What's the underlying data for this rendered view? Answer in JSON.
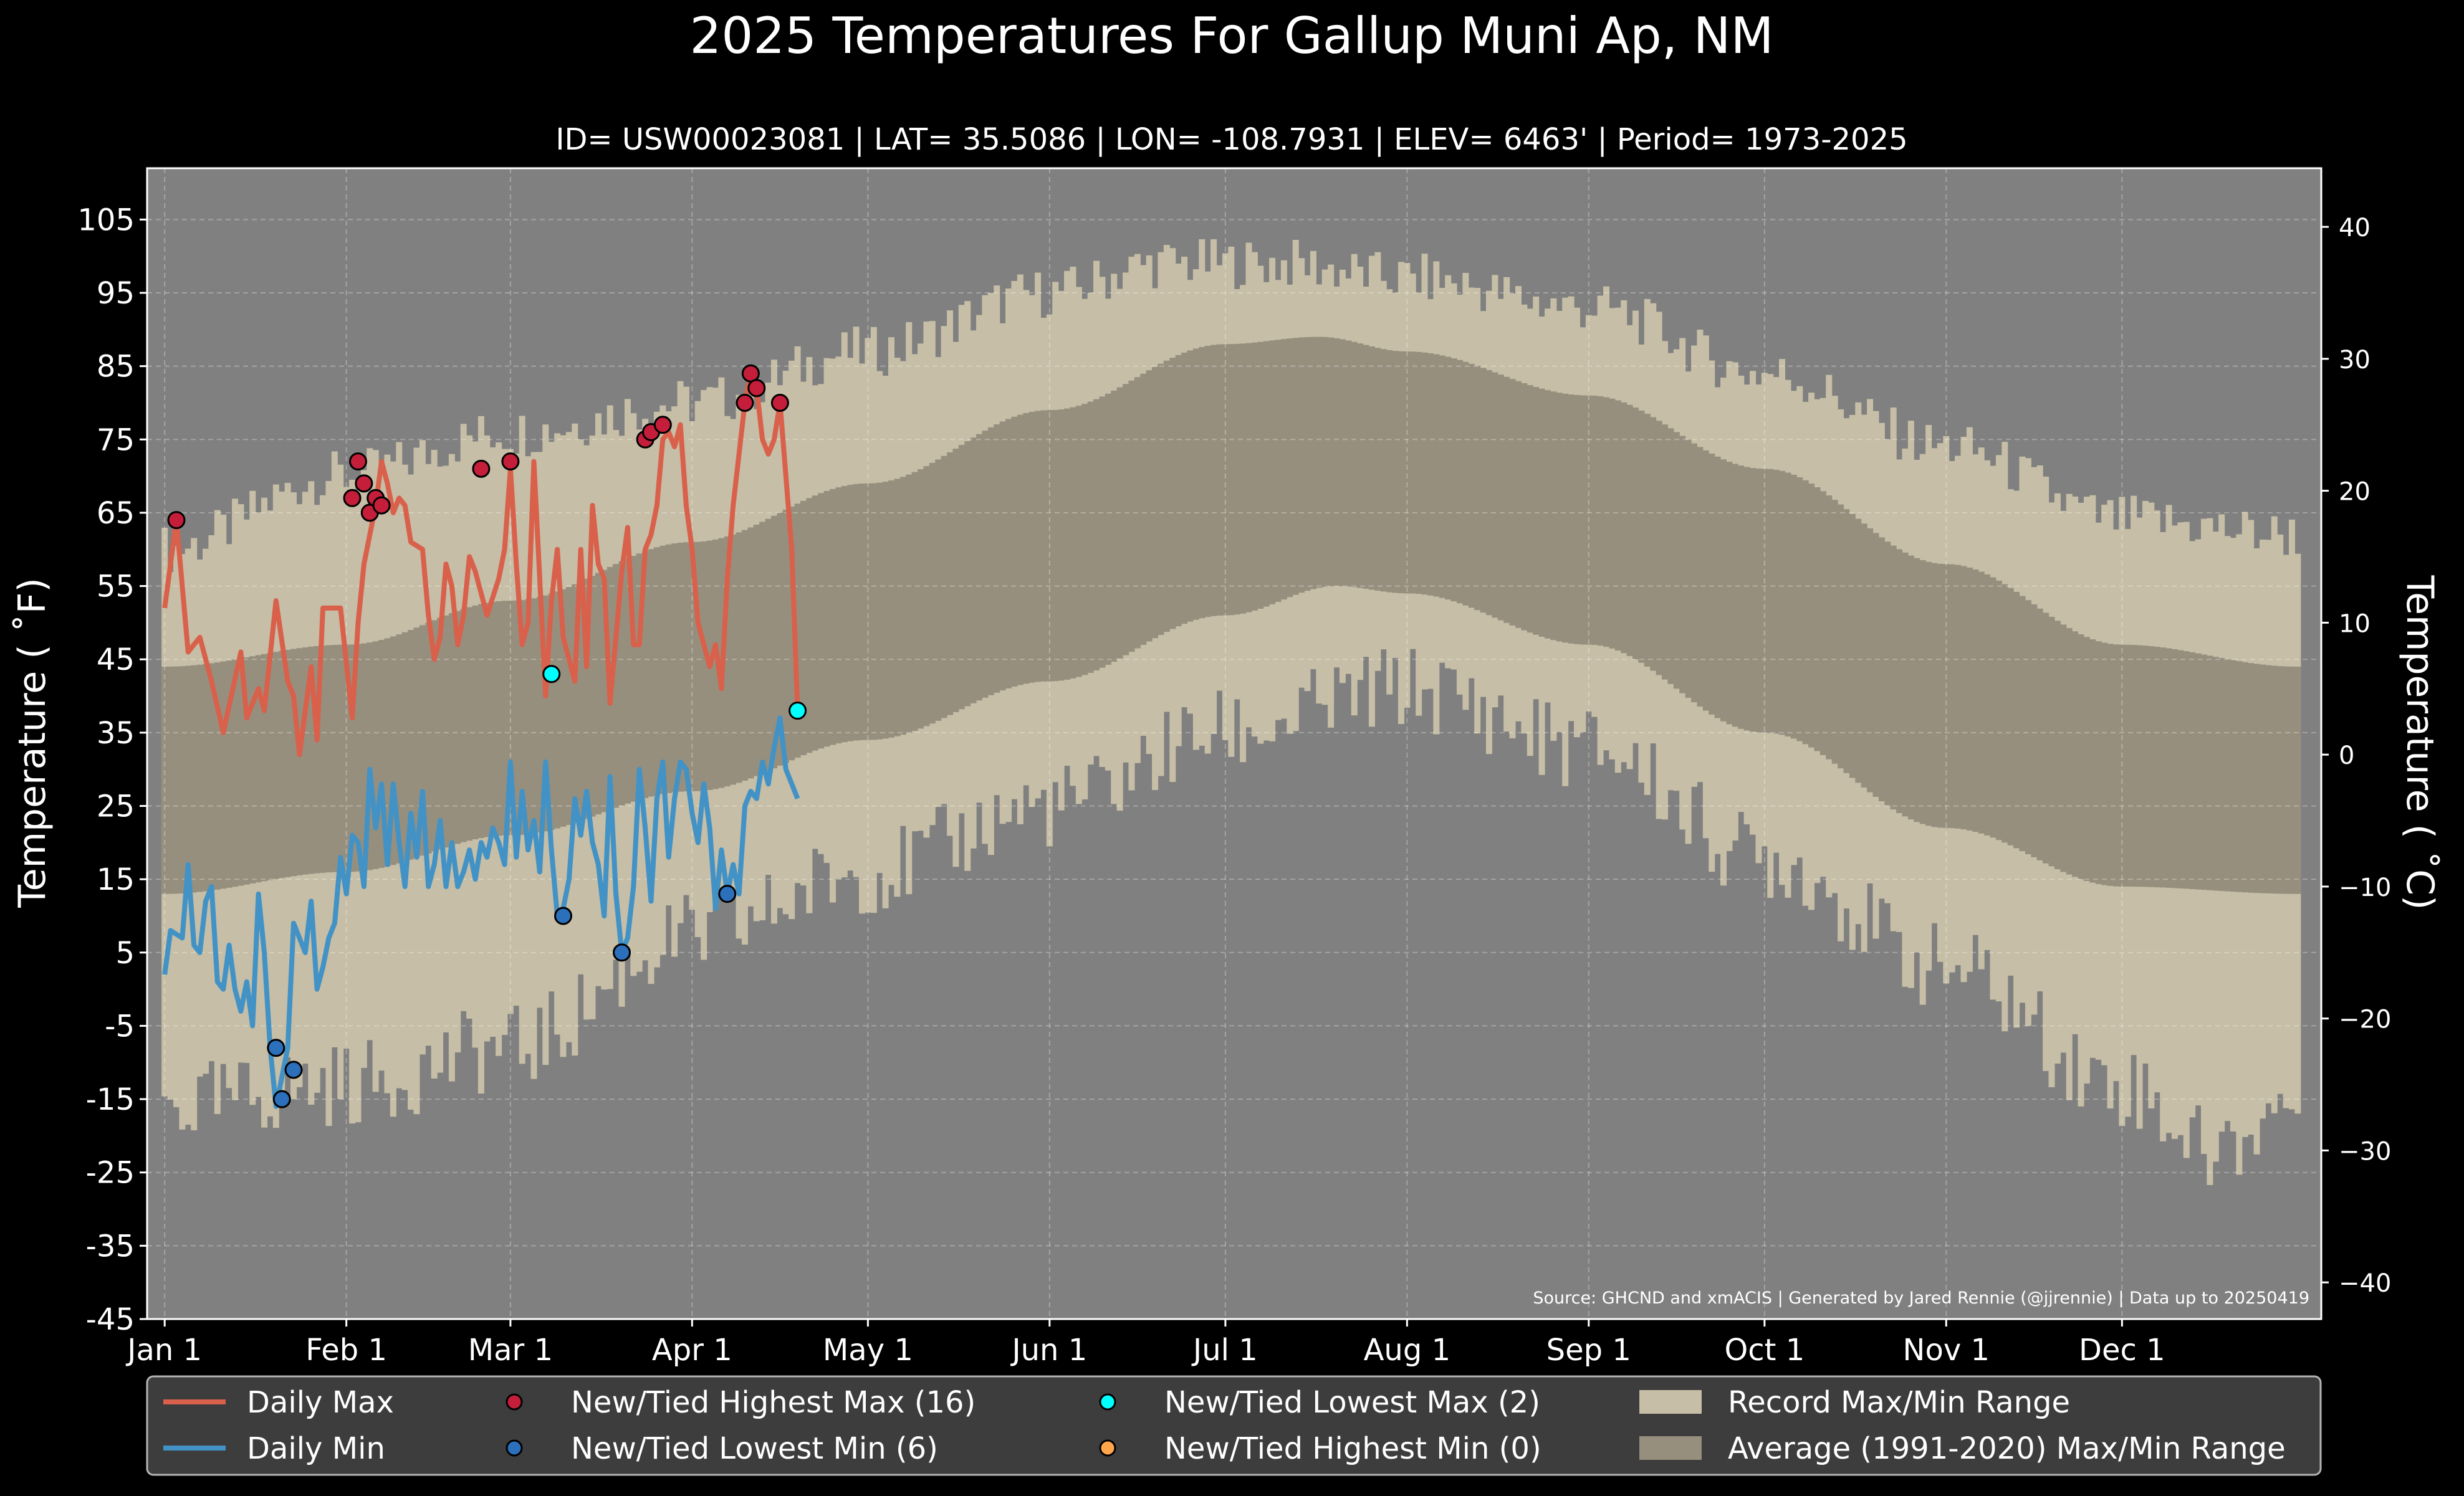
{
  "chart_data": {
    "type": "line",
    "title": "2025 Temperatures For Gallup Muni Ap, NM",
    "subtitle": "ID= USW00023081 | LAT= 35.5086 | LON= -108.7931 | ELEV= 6463' | Period= 1973-2025",
    "ylabel": "Temperature ($^\\circ$F)",
    "ylabel_display": "Temperature ( ˚F)",
    "y2label_display": "Temperature ( ˚C)",
    "source": "Source: GHCND and xmACIS | Generated by Jared Rennie (@jjrennie) | Data up to 20250419",
    "ylim": [
      -45,
      112
    ],
    "xlim": [
      -3,
      368
    ],
    "y_ticks": [
      105,
      95,
      85,
      75,
      65,
      55,
      45,
      35,
      25,
      15,
      5,
      -5,
      -15,
      -25,
      -35,
      -45
    ],
    "y2_ticks": [
      40,
      30,
      20,
      10,
      0,
      -10,
      -20,
      -30,
      -40
    ],
    "x_ticks": [
      {
        "label": "Jan 1",
        "day": 0
      },
      {
        "label": "Feb 1",
        "day": 31
      },
      {
        "label": "Mar 1",
        "day": 59
      },
      {
        "label": "Apr 1",
        "day": 90
      },
      {
        "label": "May 1",
        "day": 120
      },
      {
        "label": "Jun 1",
        "day": 151
      },
      {
        "label": "Jul 1",
        "day": 181
      },
      {
        "label": "Aug 1",
        "day": 212
      },
      {
        "label": "Sep 1",
        "day": 243
      },
      {
        "label": "Oct 1",
        "day": 273
      },
      {
        "label": "Nov 1",
        "day": 304
      },
      {
        "label": "Dec 1",
        "day": 334
      }
    ],
    "grid": true,
    "legend_position": "bottom",
    "colors": {
      "background": "#000000",
      "plot": "#808080",
      "record_range": "#c6bea6",
      "average_range": "#978f7e",
      "daily_max": "#d9604b",
      "daily_min": "#4292c6",
      "new_high_max": "#c41e3a",
      "new_low_min": "#2c6fbb",
      "new_low_max": "#00ffff",
      "new_high_min": "#ffa64d"
    },
    "legend": [
      {
        "label": "Daily Max",
        "kind": "line",
        "color": "#d9604b"
      },
      {
        "label": "Daily Min",
        "kind": "line",
        "color": "#4292c6"
      },
      {
        "label": "New/Tied Highest Max (16)",
        "kind": "dot",
        "color": "#c41e3a"
      },
      {
        "label": "New/Tied Lowest Min (6)",
        "kind": "dot",
        "color": "#2c6fbb"
      },
      {
        "label": "New/Tied Lowest Max (2)",
        "kind": "dot",
        "color": "#00ffff"
      },
      {
        "label": "New/Tied Highest Min (0)",
        "kind": "dot",
        "color": "#ffa64d"
      },
      {
        "label": "Record Max/Min Range",
        "kind": "box",
        "color": "#c6bea6"
      },
      {
        "label": "Average (1991-2020) Max/Min Range",
        "kind": "box",
        "color": "#978f7e"
      }
    ],
    "record_max_curve": [
      {
        "day": 0,
        "value": 60
      },
      {
        "day": 30,
        "value": 70
      },
      {
        "day": 59,
        "value": 76
      },
      {
        "day": 90,
        "value": 80
      },
      {
        "day": 120,
        "value": 87
      },
      {
        "day": 151,
        "value": 95
      },
      {
        "day": 170,
        "value": 99
      },
      {
        "day": 190,
        "value": 99
      },
      {
        "day": 212,
        "value": 97
      },
      {
        "day": 243,
        "value": 93
      },
      {
        "day": 273,
        "value": 84
      },
      {
        "day": 304,
        "value": 74
      },
      {
        "day": 334,
        "value": 64
      },
      {
        "day": 364,
        "value": 62
      }
    ],
    "record_min_curve": [
      {
        "day": 0,
        "value": -16
      },
      {
        "day": 31,
        "value": -13
      },
      {
        "day": 59,
        "value": -8
      },
      {
        "day": 90,
        "value": 7
      },
      {
        "day": 120,
        "value": 16
      },
      {
        "day": 151,
        "value": 25
      },
      {
        "day": 181,
        "value": 35
      },
      {
        "day": 212,
        "value": 41
      },
      {
        "day": 243,
        "value": 33
      },
      {
        "day": 273,
        "value": 18
      },
      {
        "day": 304,
        "value": 3
      },
      {
        "day": 334,
        "value": -13
      },
      {
        "day": 350,
        "value": -22
      },
      {
        "day": 364,
        "value": -15
      }
    ],
    "avg_max_curve": [
      {
        "day": 0,
        "value": 44
      },
      {
        "day": 31,
        "value": 47
      },
      {
        "day": 59,
        "value": 53
      },
      {
        "day": 90,
        "value": 61
      },
      {
        "day": 120,
        "value": 69
      },
      {
        "day": 151,
        "value": 79
      },
      {
        "day": 181,
        "value": 88
      },
      {
        "day": 197,
        "value": 89
      },
      {
        "day": 212,
        "value": 87
      },
      {
        "day": 243,
        "value": 81
      },
      {
        "day": 273,
        "value": 71
      },
      {
        "day": 304,
        "value": 58
      },
      {
        "day": 334,
        "value": 47
      },
      {
        "day": 364,
        "value": 44
      }
    ],
    "avg_min_curve": [
      {
        "day": 0,
        "value": 13
      },
      {
        "day": 31,
        "value": 16
      },
      {
        "day": 59,
        "value": 21
      },
      {
        "day": 90,
        "value": 27
      },
      {
        "day": 120,
        "value": 34
      },
      {
        "day": 151,
        "value": 42
      },
      {
        "day": 181,
        "value": 51
      },
      {
        "day": 200,
        "value": 55
      },
      {
        "day": 212,
        "value": 54
      },
      {
        "day": 243,
        "value": 47
      },
      {
        "day": 273,
        "value": 35
      },
      {
        "day": 304,
        "value": 22
      },
      {
        "day": 334,
        "value": 14
      },
      {
        "day": 364,
        "value": 13
      }
    ],
    "daily_max": [
      {
        "day": 0,
        "value": 52
      },
      {
        "day": 2,
        "value": 64
      },
      {
        "day": 4,
        "value": 46
      },
      {
        "day": 6,
        "value": 48
      },
      {
        "day": 8,
        "value": 42
      },
      {
        "day": 10,
        "value": 35
      },
      {
        "day": 13,
        "value": 46
      },
      {
        "day": 14,
        "value": 37
      },
      {
        "day": 16,
        "value": 41
      },
      {
        "day": 17,
        "value": 38
      },
      {
        "day": 19,
        "value": 53
      },
      {
        "day": 21,
        "value": 42
      },
      {
        "day": 22,
        "value": 40
      },
      {
        "day": 23,
        "value": 32
      },
      {
        "day": 25,
        "value": 44
      },
      {
        "day": 26,
        "value": 34
      },
      {
        "day": 27,
        "value": 52
      },
      {
        "day": 30,
        "value": 52
      },
      {
        "day": 32,
        "value": 37
      },
      {
        "day": 33,
        "value": 50
      },
      {
        "day": 34,
        "value": 58
      },
      {
        "day": 36,
        "value": 66
      },
      {
        "day": 37,
        "value": 72
      },
      {
        "day": 38,
        "value": 69
      },
      {
        "day": 39,
        "value": 65
      },
      {
        "day": 40,
        "value": 67
      },
      {
        "day": 41,
        "value": 66
      },
      {
        "day": 42,
        "value": 61
      },
      {
        "day": 44,
        "value": 60
      },
      {
        "day": 45,
        "value": 51
      },
      {
        "day": 46,
        "value": 45
      },
      {
        "day": 47,
        "value": 48
      },
      {
        "day": 48,
        "value": 58
      },
      {
        "day": 49,
        "value": 55
      },
      {
        "day": 50,
        "value": 47
      },
      {
        "day": 51,
        "value": 51
      },
      {
        "day": 52,
        "value": 59
      },
      {
        "day": 53,
        "value": 57
      },
      {
        "day": 55,
        "value": 51
      },
      {
        "day": 57,
        "value": 56
      },
      {
        "day": 58,
        "value": 60
      },
      {
        "day": 59,
        "value": 71
      },
      {
        "day": 60,
        "value": 58
      },
      {
        "day": 61,
        "value": 47
      },
      {
        "day": 62,
        "value": 50
      },
      {
        "day": 63,
        "value": 72
      },
      {
        "day": 65,
        "value": 40
      },
      {
        "day": 66,
        "value": 53
      },
      {
        "day": 67,
        "value": 60
      },
      {
        "day": 68,
        "value": 48
      },
      {
        "day": 70,
        "value": 42
      },
      {
        "day": 71,
        "value": 60
      },
      {
        "day": 72,
        "value": 44
      },
      {
        "day": 73,
        "value": 66
      },
      {
        "day": 74,
        "value": 58
      },
      {
        "day": 75,
        "value": 56
      },
      {
        "day": 76,
        "value": 39
      },
      {
        "day": 78,
        "value": 57
      },
      {
        "day": 79,
        "value": 63
      },
      {
        "day": 80,
        "value": 47
      },
      {
        "day": 81,
        "value": 47
      },
      {
        "day": 82,
        "value": 60
      },
      {
        "day": 83,
        "value": 62
      },
      {
        "day": 84,
        "value": 66
      },
      {
        "day": 85,
        "value": 75
      },
      {
        "day": 86,
        "value": 76
      },
      {
        "day": 87,
        "value": 74
      },
      {
        "day": 88,
        "value": 77
      },
      {
        "day": 89,
        "value": 66
      },
      {
        "day": 90,
        "value": 60
      },
      {
        "day": 91,
        "value": 50
      },
      {
        "day": 92,
        "value": 47
      },
      {
        "day": 93,
        "value": 44
      },
      {
        "day": 94,
        "value": 47
      },
      {
        "day": 95,
        "value": 41
      },
      {
        "day": 96,
        "value": 56
      },
      {
        "day": 97,
        "value": 66
      },
      {
        "day": 98,
        "value": 73
      },
      {
        "day": 99,
        "value": 80
      },
      {
        "day": 100,
        "value": 84
      },
      {
        "day": 101,
        "value": 82
      },
      {
        "day": 102,
        "value": 75
      },
      {
        "day": 103,
        "value": 73
      },
      {
        "day": 104,
        "value": 75
      },
      {
        "day": 105,
        "value": 80
      },
      {
        "day": 107,
        "value": 60
      },
      {
        "day": 108,
        "value": 38
      }
    ],
    "daily_min": [
      {
        "day": 0,
        "value": 2
      },
      {
        "day": 1,
        "value": 8
      },
      {
        "day": 3,
        "value": 7
      },
      {
        "day": 4,
        "value": 17
      },
      {
        "day": 5,
        "value": 6
      },
      {
        "day": 6,
        "value": 5
      },
      {
        "day": 7,
        "value": 12
      },
      {
        "day": 8,
        "value": 14
      },
      {
        "day": 9,
        "value": 1
      },
      {
        "day": 10,
        "value": 0
      },
      {
        "day": 11,
        "value": 6
      },
      {
        "day": 12,
        "value": 0
      },
      {
        "day": 13,
        "value": -3
      },
      {
        "day": 14,
        "value": 1
      },
      {
        "day": 15,
        "value": -5
      },
      {
        "day": 16,
        "value": 13
      },
      {
        "day": 17,
        "value": 5
      },
      {
        "day": 18,
        "value": -8
      },
      {
        "day": 19,
        "value": -16
      },
      {
        "day": 20,
        "value": -12
      },
      {
        "day": 21,
        "value": -8
      },
      {
        "day": 22,
        "value": 9
      },
      {
        "day": 23,
        "value": 7
      },
      {
        "day": 24,
        "value": 5
      },
      {
        "day": 25,
        "value": 12
      },
      {
        "day": 26,
        "value": 0
      },
      {
        "day": 27,
        "value": 3
      },
      {
        "day": 28,
        "value": 7
      },
      {
        "day": 29,
        "value": 9
      },
      {
        "day": 30,
        "value": 18
      },
      {
        "day": 31,
        "value": 13
      },
      {
        "day": 32,
        "value": 21
      },
      {
        "day": 33,
        "value": 20
      },
      {
        "day": 34,
        "value": 14
      },
      {
        "day": 35,
        "value": 30
      },
      {
        "day": 36,
        "value": 22
      },
      {
        "day": 37,
        "value": 28
      },
      {
        "day": 38,
        "value": 17
      },
      {
        "day": 39,
        "value": 28
      },
      {
        "day": 40,
        "value": 20
      },
      {
        "day": 41,
        "value": 14
      },
      {
        "day": 42,
        "value": 24
      },
      {
        "day": 43,
        "value": 18
      },
      {
        "day": 44,
        "value": 27
      },
      {
        "day": 45,
        "value": 14
      },
      {
        "day": 46,
        "value": 17
      },
      {
        "day": 47,
        "value": 23
      },
      {
        "day": 48,
        "value": 14
      },
      {
        "day": 49,
        "value": 20
      },
      {
        "day": 50,
        "value": 14
      },
      {
        "day": 51,
        "value": 16
      },
      {
        "day": 52,
        "value": 19
      },
      {
        "day": 53,
        "value": 15
      },
      {
        "day": 54,
        "value": 20
      },
      {
        "day": 55,
        "value": 18
      },
      {
        "day": 56,
        "value": 22
      },
      {
        "day": 57,
        "value": 20
      },
      {
        "day": 58,
        "value": 17
      },
      {
        "day": 59,
        "value": 31
      },
      {
        "day": 60,
        "value": 18
      },
      {
        "day": 61,
        "value": 27
      },
      {
        "day": 62,
        "value": 19
      },
      {
        "day": 63,
        "value": 23
      },
      {
        "day": 64,
        "value": 16
      },
      {
        "day": 65,
        "value": 31
      },
      {
        "day": 66,
        "value": 19
      },
      {
        "day": 67,
        "value": 10
      },
      {
        "day": 68,
        "value": 11
      },
      {
        "day": 69,
        "value": 15
      },
      {
        "day": 70,
        "value": 26
      },
      {
        "day": 71,
        "value": 21
      },
      {
        "day": 72,
        "value": 27
      },
      {
        "day": 73,
        "value": 20
      },
      {
        "day": 74,
        "value": 17
      },
      {
        "day": 75,
        "value": 10
      },
      {
        "day": 76,
        "value": 29
      },
      {
        "day": 77,
        "value": 13
      },
      {
        "day": 78,
        "value": 5
      },
      {
        "day": 79,
        "value": 7
      },
      {
        "day": 80,
        "value": 14
      },
      {
        "day": 81,
        "value": 30
      },
      {
        "day": 82,
        "value": 22
      },
      {
        "day": 83,
        "value": 12
      },
      {
        "day": 84,
        "value": 26
      },
      {
        "day": 85,
        "value": 31
      },
      {
        "day": 86,
        "value": 18
      },
      {
        "day": 87,
        "value": 26
      },
      {
        "day": 88,
        "value": 31
      },
      {
        "day": 89,
        "value": 30
      },
      {
        "day": 90,
        "value": 24
      },
      {
        "day": 91,
        "value": 20
      },
      {
        "day": 92,
        "value": 28
      },
      {
        "day": 93,
        "value": 22
      },
      {
        "day": 94,
        "value": 11
      },
      {
        "day": 95,
        "value": 19
      },
      {
        "day": 96,
        "value": 13
      },
      {
        "day": 97,
        "value": 17
      },
      {
        "day": 98,
        "value": 13
      },
      {
        "day": 99,
        "value": 25
      },
      {
        "day": 100,
        "value": 27
      },
      {
        "day": 101,
        "value": 26
      },
      {
        "day": 102,
        "value": 31
      },
      {
        "day": 103,
        "value": 28
      },
      {
        "day": 104,
        "value": 33
      },
      {
        "day": 105,
        "value": 37
      },
      {
        "day": 106,
        "value": 30
      },
      {
        "day": 107,
        "value": 28
      },
      {
        "day": 108,
        "value": 26
      }
    ],
    "new_high_max_points": [
      {
        "day": 2,
        "value": 64
      },
      {
        "day": 32,
        "value": 67
      },
      {
        "day": 33,
        "value": 72
      },
      {
        "day": 34,
        "value": 69
      },
      {
        "day": 35,
        "value": 65
      },
      {
        "day": 36,
        "value": 67
      },
      {
        "day": 37,
        "value": 66
      },
      {
        "day": 54,
        "value": 71
      },
      {
        "day": 59,
        "value": 72
      },
      {
        "day": 82,
        "value": 75
      },
      {
        "day": 83,
        "value": 76
      },
      {
        "day": 85,
        "value": 77
      },
      {
        "day": 99,
        "value": 80
      },
      {
        "day": 100,
        "value": 84
      },
      {
        "day": 101,
        "value": 82
      },
      {
        "day": 105,
        "value": 80
      }
    ],
    "new_low_min_points": [
      {
        "day": 19,
        "value": -8
      },
      {
        "day": 20,
        "value": -15
      },
      {
        "day": 22,
        "value": -11
      },
      {
        "day": 68,
        "value": 10
      },
      {
        "day": 78,
        "value": 5
      },
      {
        "day": 96,
        "value": 13
      }
    ],
    "new_low_max_points": [
      {
        "day": 66,
        "value": 43
      },
      {
        "day": 108,
        "value": 38
      }
    ],
    "new_high_min_points": []
  }
}
